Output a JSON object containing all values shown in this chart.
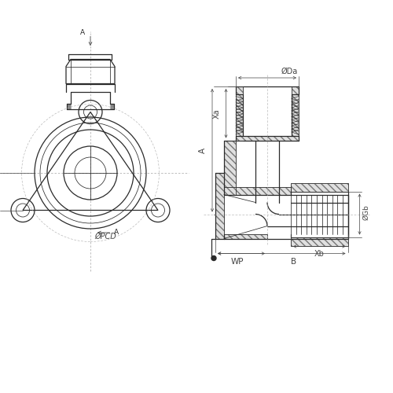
{
  "bg_color": "#ffffff",
  "line_color": "#2a2a2a",
  "dim_color": "#444444",
  "fig_width": 5.0,
  "fig_height": 5.0,
  "dpi": 100,
  "labels": {
    "A": "A",
    "Xa": "Xa",
    "Da": "ØDa",
    "Gb": "ØGb",
    "Xb": "Xb",
    "B": "B",
    "WP": "WP",
    "PCD": "ØPCD"
  }
}
